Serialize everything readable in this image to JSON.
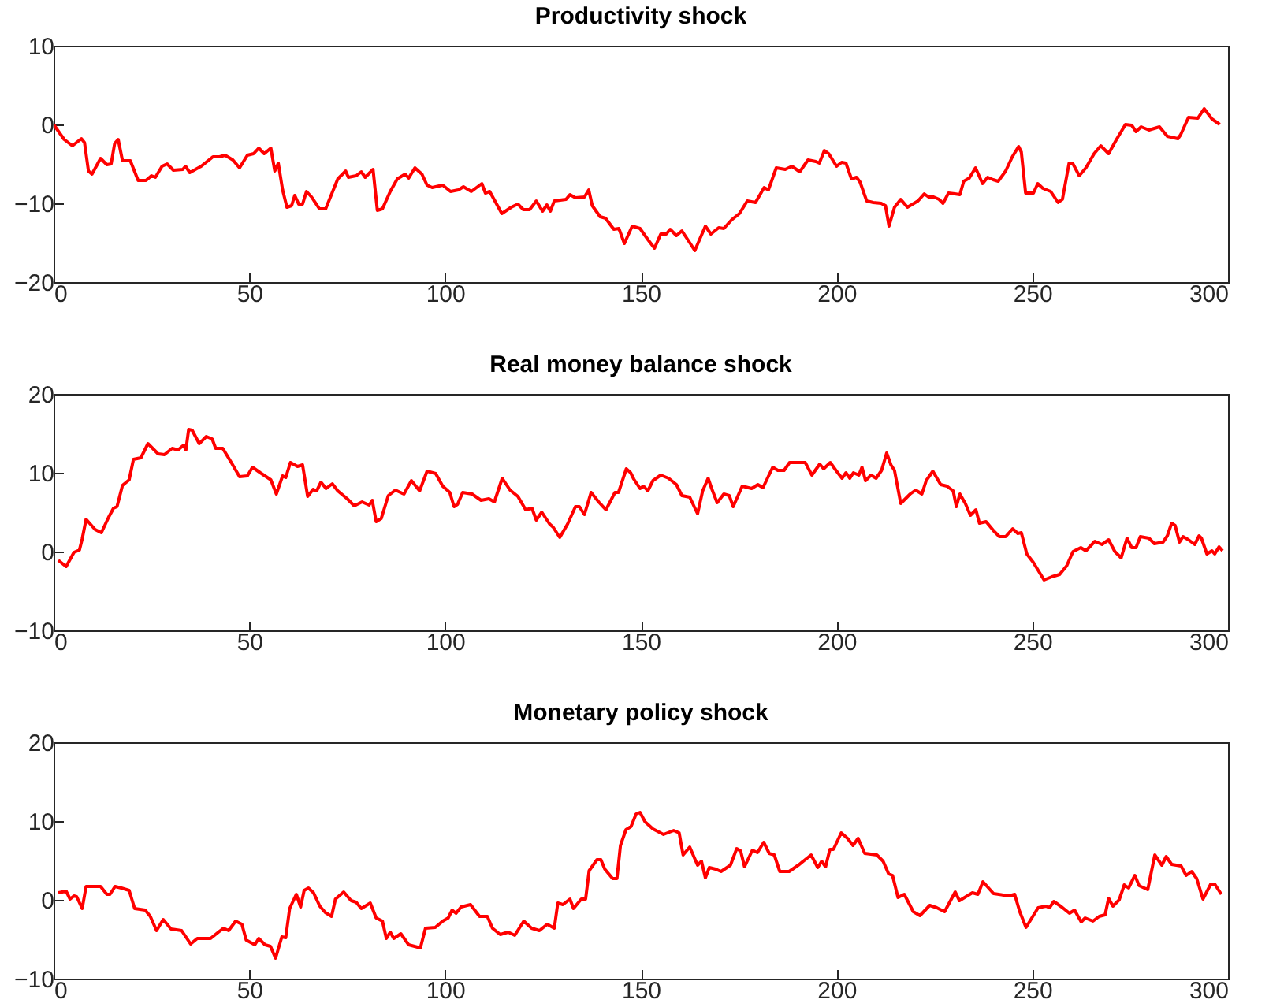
{
  "chart_data": [
    {
      "type": "line",
      "title": "Productivity shock",
      "xlim": [
        0,
        300
      ],
      "xticks": [
        0,
        50,
        100,
        150,
        200,
        250,
        300
      ],
      "ylim": [
        -20,
        10
      ],
      "yticks": [
        -20,
        -10,
        0,
        10
      ],
      "x": [
        0,
        2.7,
        4.8,
        7.1,
        7.9,
        8.9,
        9.8,
        12,
        13.6,
        14.7,
        15.6,
        16.5,
        17.6,
        19.6,
        21.6,
        23.6,
        25,
        26,
        27.7,
        29,
        30.6,
        33,
        33.7,
        34.8,
        37.7,
        40.7,
        42.4,
        43.8,
        45.8,
        47.5,
        49.5,
        51.1,
        52.4,
        53.8,
        55.5,
        56.5,
        57.4,
        58.5,
        59.6,
        60.8,
        61.6,
        62.6,
        63.6,
        64.6,
        65.9,
        67.9,
        69.5,
        72.6,
        74.6,
        75.3,
        77.3,
        78.6,
        79.6,
        81.6,
        82.7,
        84,
        86,
        87.8,
        89.8,
        90.7,
        92.3,
        94.1,
        95.4,
        96.7,
        99.4,
        101.4,
        103.4,
        104.7,
        106.7,
        109.4,
        110.3,
        111.4,
        114.5,
        116.9,
        118.6,
        120,
        121.6,
        123.3,
        124.9,
        126,
        126.9,
        127.9,
        130.9,
        131.9,
        133.3,
        135.6,
        136.7,
        137.6,
        139.6,
        141,
        143.1,
        144.4,
        145.8,
        147.8,
        149.8,
        151.8,
        153.5,
        155.1,
        156.5,
        157.5,
        159.1,
        160.5,
        162.5,
        163.8,
        166.5,
        167.9,
        169.9,
        171.2,
        173.2,
        175.2,
        177.2,
        179.3,
        181.5,
        182.6,
        184.6,
        186.9,
        188.6,
        190.6,
        192.7,
        194.7,
        195.6,
        196.9,
        198,
        200,
        201.3,
        202.4,
        203.8,
        205.1,
        206,
        207.7,
        209.4,
        211.4,
        212.5,
        213.4,
        214.8,
        216.4,
        218.1,
        220.8,
        222.4,
        223.5,
        224.8,
        226.2,
        227.2,
        228.6,
        230.2,
        231.5,
        232.5,
        233.9,
        235.5,
        237.3,
        238.6,
        240,
        241.3,
        243.2,
        244.9,
        246.5,
        247.2,
        248.3,
        250.3,
        251.4,
        252.7,
        254.7,
        256.6,
        257.7,
        259.4,
        260.4,
        262,
        263.7,
        265.8,
        267.5,
        269.5,
        271.4,
        273.8,
        275.4,
        276.5,
        277.8,
        279.8,
        282.5,
        284.5,
        287.2,
        287.9,
        289.9,
        292.3,
        293.9,
        295.9,
        297.9
      ],
      "series": [
        {
          "color": "#ff0000",
          "values": [
            0,
            -1.9,
            -2.7,
            -1.8,
            -2.3,
            -5.9,
            -6.3,
            -4.3,
            -5.1,
            -5,
            -2.4,
            -1.9,
            -4.6,
            -4.6,
            -7.1,
            -7.1,
            -6.5,
            -6.7,
            -5.3,
            -5,
            -5.8,
            -5.7,
            -5.3,
            -6.1,
            -5.3,
            -4.1,
            -4.1,
            -3.9,
            -4.5,
            -5.5,
            -3.9,
            -3.7,
            -3,
            -3.7,
            -3,
            -5.9,
            -4.9,
            -8.3,
            -10.5,
            -10.3,
            -9,
            -10.1,
            -10.1,
            -8.5,
            -9.2,
            -10.7,
            -10.7,
            -6.9,
            -5.9,
            -6.7,
            -6.5,
            -6,
            -6.7,
            -5.7,
            -10.9,
            -10.7,
            -8.5,
            -6.9,
            -6.3,
            -6.8,
            -5.5,
            -6.3,
            -7.7,
            -8,
            -7.7,
            -8.5,
            -8.3,
            -7.9,
            -8.5,
            -7.5,
            -8.7,
            -8.5,
            -11.3,
            -10.5,
            -10.1,
            -10.8,
            -10.8,
            -9.7,
            -11,
            -10.2,
            -11,
            -9.7,
            -9.5,
            -8.9,
            -9.3,
            -9.2,
            -8.3,
            -10.3,
            -11.7,
            -11.9,
            -13.3,
            -13.2,
            -15.1,
            -12.9,
            -13.2,
            -14.6,
            -15.7,
            -13.9,
            -13.9,
            -13.3,
            -14.1,
            -13.5,
            -15,
            -16,
            -12.9,
            -13.9,
            -13.1,
            -13.2,
            -12.1,
            -11.3,
            -9.7,
            -9.9,
            -8,
            -8.3,
            -5.5,
            -5.7,
            -5.3,
            -6,
            -4.5,
            -4.7,
            -4.9,
            -3.3,
            -3.7,
            -5.3,
            -4.8,
            -4.9,
            -6.9,
            -6.7,
            -7.3,
            -9.7,
            -9.9,
            -10,
            -10.3,
            -12.9,
            -10.5,
            -9.5,
            -10.5,
            -9.7,
            -8.8,
            -9.2,
            -9.2,
            -9.5,
            -10,
            -8.7,
            -8.8,
            -8.9,
            -7.2,
            -6.8,
            -5.5,
            -7.5,
            -6.7,
            -7,
            -7.2,
            -5.9,
            -4.1,
            -2.8,
            -3.5,
            -8.7,
            -8.7,
            -7.5,
            -8.1,
            -8.5,
            -9.9,
            -9.5,
            -4.9,
            -5,
            -6.5,
            -5.5,
            -3.7,
            -2.7,
            -3.7,
            -2,
            0,
            -0.1,
            -0.9,
            -0.3,
            -0.7,
            -0.3,
            -1.5,
            -1.8,
            -1.3,
            0.9,
            0.8,
            2,
            0.7,
            0
          ]
        }
      ]
    },
    {
      "type": "line",
      "title": "Real money balance shock",
      "xlim": [
        0,
        300
      ],
      "xticks": [
        0,
        50,
        100,
        150,
        200,
        250,
        300
      ],
      "ylim": [
        -10,
        20
      ],
      "yticks": [
        -10,
        0,
        10,
        20
      ],
      "x": [
        1.2,
        3.2,
        5.2,
        6.6,
        7.3,
        8.3,
        10.6,
        12.2,
        14,
        15.3,
        16.2,
        17.6,
        19.3,
        20.4,
        22.3,
        24.1,
        26.7,
        28.3,
        30.3,
        31.8,
        33.2,
        33.8,
        34.5,
        35.4,
        37.2,
        39,
        40.5,
        41.4,
        43.2,
        45.4,
        47.5,
        49.5,
        50.8,
        52.8,
        55.5,
        56.9,
        58.5,
        59.3,
        60.5,
        62.3,
        63.6,
        64.9,
        66.3,
        67.2,
        68.3,
        69.6,
        71.2,
        72.6,
        75,
        76.8,
        78.8,
        80.6,
        81.4,
        82.4,
        83.7,
        85.5,
        87.3,
        89.5,
        91.4,
        93.5,
        95.4,
        97.6,
        99.4,
        101.2,
        102.3,
        103.2,
        104.5,
        106.9,
        109.2,
        111.2,
        112.6,
        114.6,
        116.6,
        118.6,
        120.6,
        122.2,
        123.3,
        124.7,
        126.7,
        127.6,
        129.3,
        131.3,
        133.3,
        134.3,
        135.6,
        137.3,
        139.4,
        141.1,
        143.4,
        144.3,
        146.3,
        147.4,
        148.2,
        149.8,
        150.7,
        151.8,
        153.1,
        155.1,
        157.1,
        159.1,
        160.5,
        162.5,
        164.5,
        165.8,
        167.2,
        168.1,
        169.5,
        171.2,
        172.6,
        173.6,
        175.9,
        178.3,
        179.9,
        181.2,
        183.7,
        185,
        186.6,
        188,
        192,
        193.7,
        195.7,
        196.7,
        198.4,
        200,
        201.4,
        202.4,
        203.4,
        204.3,
        205.7,
        206.5,
        207.4,
        208.8,
        210.1,
        211.5,
        212.8,
        213.9,
        214.8,
        216.4,
        218.8,
        220.2,
        221.8,
        222.9,
        224.6,
        226.6,
        228.2,
        229.8,
        230.6,
        231.5,
        232.9,
        234.2,
        235.6,
        236.5,
        238.2,
        240.2,
        241.6,
        243.2,
        245,
        246.3,
        247.2,
        248.6,
        250.3,
        253,
        255,
        257,
        258.8,
        260.4,
        262.4,
        263.7,
        266,
        267.8,
        269.5,
        271.1,
        272.7,
        274.2,
        275.4,
        276.5,
        277.6,
        279.8,
        281.2,
        283.4,
        284.5,
        285.6,
        286.5,
        287.6,
        288.5,
        289.9,
        291.5,
        292.6,
        293.2,
        294.6,
        295.9,
        296.6,
        297.7,
        298.6
      ],
      "series": [
        {
          "color": "#ff0000",
          "values": [
            -1.1,
            -1.9,
            -0.1,
            0.2,
            1.6,
            4.1,
            2.8,
            2.4,
            4.3,
            5.5,
            5.7,
            8.4,
            9.1,
            11.7,
            11.9,
            13.7,
            12.4,
            12.3,
            13.1,
            12.9,
            13.5,
            12.9,
            15.5,
            15.4,
            13.7,
            14.6,
            14.3,
            13.1,
            13.1,
            11.3,
            9.5,
            9.6,
            10.7,
            10,
            9.1,
            7.3,
            9.6,
            9.4,
            11.3,
            10.8,
            11,
            7,
            7.9,
            7.7,
            8.8,
            8,
            8.6,
            7.7,
            6.7,
            5.8,
            6.3,
            5.9,
            6.5,
            3.8,
            4.2,
            7.1,
            7.8,
            7.3,
            9,
            7.7,
            10.2,
            9.9,
            8.3,
            7.5,
            5.7,
            6,
            7.5,
            7.3,
            6.5,
            6.7,
            6.3,
            9.3,
            7.8,
            7,
            5.3,
            5.5,
            4,
            5,
            3.5,
            3.1,
            1.8,
            3.5,
            5.7,
            5.7,
            4.7,
            7.5,
            6.2,
            5.3,
            7.5,
            7.5,
            10.5,
            10,
            9.2,
            8,
            8.3,
            7.7,
            9,
            9.7,
            9.3,
            8.5,
            7.1,
            6.9,
            4.8,
            7.7,
            9.3,
            8,
            6.2,
            7.3,
            7.1,
            5.7,
            8.3,
            8,
            8.5,
            8.1,
            10.7,
            10.3,
            10.3,
            11.3,
            11.3,
            9.7,
            11.1,
            10.5,
            11.3,
            10.2,
            9.3,
            10,
            9.3,
            10,
            9.7,
            10.7,
            9,
            9.7,
            9.3,
            10.3,
            12.5,
            11,
            10.3,
            6.1,
            7.3,
            7.8,
            7.3,
            9,
            10.2,
            8.5,
            8.3,
            7.7,
            5.7,
            7.3,
            6.1,
            4.6,
            5.3,
            3.6,
            3.8,
            2.6,
            1.9,
            1.9,
            2.9,
            2.3,
            2.4,
            -0.3,
            -1.4,
            -3.6,
            -3.2,
            -2.9,
            -1.8,
            0,
            0.5,
            0.1,
            1.3,
            0.9,
            1.5,
            0,
            -0.8,
            1.7,
            0.5,
            0.5,
            1.9,
            1.7,
            1,
            1.2,
            2,
            3.6,
            3.3,
            1.2,
            1.9,
            1.5,
            0.9,
            2,
            1.7,
            -0.3,
            0.1,
            -0.3,
            0.6,
            0.1
          ]
        }
      ]
    },
    {
      "type": "line",
      "title": "Monetary policy shock",
      "xlim": [
        0,
        300
      ],
      "xticks": [
        0,
        50,
        100,
        150,
        200,
        250,
        300
      ],
      "ylim": [
        -10,
        20
      ],
      "yticks": [
        -10,
        0,
        10,
        20
      ],
      "x": [
        1.2,
        3.2,
        4.2,
        5.2,
        5.9,
        7.3,
        8.3,
        10,
        12,
        13.6,
        14.4,
        15.7,
        17.3,
        19.3,
        20.7,
        23.4,
        24.7,
        26.3,
        28,
        30,
        32.7,
        35,
        36.7,
        40.1,
        42.1,
        43.4,
        44.7,
        46.5,
        48.1,
        49.2,
        51.4,
        52.4,
        54,
        55.4,
        56.7,
        58.3,
        59.3,
        60.3,
        62,
        63.1,
        64,
        65.1,
        66.4,
        68,
        69.4,
        71,
        72,
        74.1,
        76,
        77.3,
        78.6,
        80.9,
        82.4,
        84,
        85,
        86,
        86.9,
        88.7,
        90.7,
        93.7,
        95,
        97.5,
        99.4,
        100.8,
        101.8,
        102.8,
        104.1,
        106.5,
        108.8,
        110.8,
        112.1,
        114.1,
        116.1,
        117.8,
        120.1,
        122.1,
        124.1,
        126.1,
        127.9,
        128.8,
        130.1,
        131.9,
        132.8,
        134.8,
        135.9,
        136.8,
        138.8,
        139.8,
        140.8,
        142.8,
        143.9,
        144.8,
        146.2,
        147.5,
        148.8,
        149.8,
        151.1,
        153.1,
        155.8,
        158.4,
        159.8,
        160.8,
        162.5,
        164.5,
        165.5,
        166.5,
        167.5,
        169.1,
        170.5,
        172.9,
        174.5,
        175.5,
        176.5,
        178.5,
        179.8,
        181.4,
        182.8,
        184.1,
        185.5,
        187.9,
        190.5,
        193.5,
        195.2,
        196.2,
        197.2,
        198.3,
        199.2,
        201.2,
        202.8,
        204.2,
        205.5,
        207.2,
        210.3,
        211.9,
        213.3,
        214.3,
        215.7,
        217.3,
        219.6,
        221.3,
        223.8,
        225.6,
        227.6,
        230.3,
        231.4,
        234.7,
        236.1,
        237.4,
        240.1,
        244.1,
        245.5,
        246.8,
        248.4,
        251.5,
        253.5,
        254.4,
        255.5,
        257.5,
        259.5,
        260.8,
        262.5,
        263.5,
        265.5,
        267.1,
        268.6,
        269.5,
        270.6,
        272.2,
        273.5,
        274.6,
        276.2,
        277.3,
        279.5,
        281.3,
        283.1,
        284.2,
        285.6,
        288,
        289.3,
        290.7,
        292,
        293.6,
        295.6,
        296.6,
        298.3
      ],
      "series": [
        {
          "color": "#ff0000",
          "values": [
            0.9,
            1.1,
            0.1,
            0.5,
            0.4,
            -1.1,
            1.7,
            1.7,
            1.7,
            0.7,
            0.7,
            1.7,
            1.5,
            1.2,
            -1.1,
            -1.3,
            -2.1,
            -3.9,
            -2.5,
            -3.7,
            -3.9,
            -5.6,
            -4.9,
            -4.9,
            -4.1,
            -3.6,
            -3.9,
            -2.7,
            -3.1,
            -5.1,
            -5.7,
            -4.9,
            -5.7,
            -5.9,
            -7.4,
            -4.7,
            -4.8,
            -1.1,
            0.7,
            -0.9,
            1.2,
            1.5,
            0.9,
            -0.8,
            -1.6,
            -2.1,
            0.1,
            1,
            -0.1,
            -0.3,
            -1.1,
            -0.4,
            -2.3,
            -2.7,
            -4.9,
            -4.1,
            -4.9,
            -4.3,
            -5.7,
            -6.1,
            -3.6,
            -3.5,
            -2.7,
            -2.3,
            -1.3,
            -1.7,
            -0.9,
            -0.6,
            -2.1,
            -2.1,
            -3.6,
            -4.4,
            -4.1,
            -4.5,
            -2.7,
            -3.6,
            -3.9,
            -3.1,
            -3.6,
            -0.4,
            -0.6,
            0.1,
            -1.1,
            0.1,
            0.1,
            3.7,
            5.1,
            5.1,
            3.9,
            2.7,
            2.7,
            6.9,
            8.9,
            9.3,
            10.9,
            11.1,
            9.9,
            9,
            8.3,
            8.8,
            8.5,
            5.7,
            6.7,
            4.4,
            4.9,
            2.8,
            4.1,
            3.9,
            3.6,
            4.4,
            6.5,
            6.2,
            4.2,
            6.3,
            6,
            7.3,
            5.9,
            5.7,
            3.6,
            3.6,
            4.5,
            5.7,
            4.1,
            4.9,
            4.2,
            6.4,
            6.4,
            8.5,
            7.8,
            6.9,
            7.8,
            5.9,
            5.7,
            4.9,
            3.3,
            3.1,
            0.3,
            0.7,
            -1.5,
            -2,
            -0.7,
            -1,
            -1.5,
            1,
            -0.1,
            0.9,
            0.7,
            2.3,
            0.8,
            0.5,
            0.7,
            -1.5,
            -3.5,
            -1,
            -0.8,
            -1,
            -0.2,
            -0.9,
            -1.7,
            -1.3,
            -2.8,
            -2.3,
            -2.7,
            -2.1,
            -1.9,
            0.2,
            -0.8,
            0,
            1.9,
            1.5,
            3.1,
            1.8,
            1.3,
            5.7,
            4.4,
            5.5,
            4.5,
            4.3,
            3.1,
            3.6,
            2.7,
            0.1,
            2,
            2,
            0.7
          ]
        }
      ]
    }
  ]
}
